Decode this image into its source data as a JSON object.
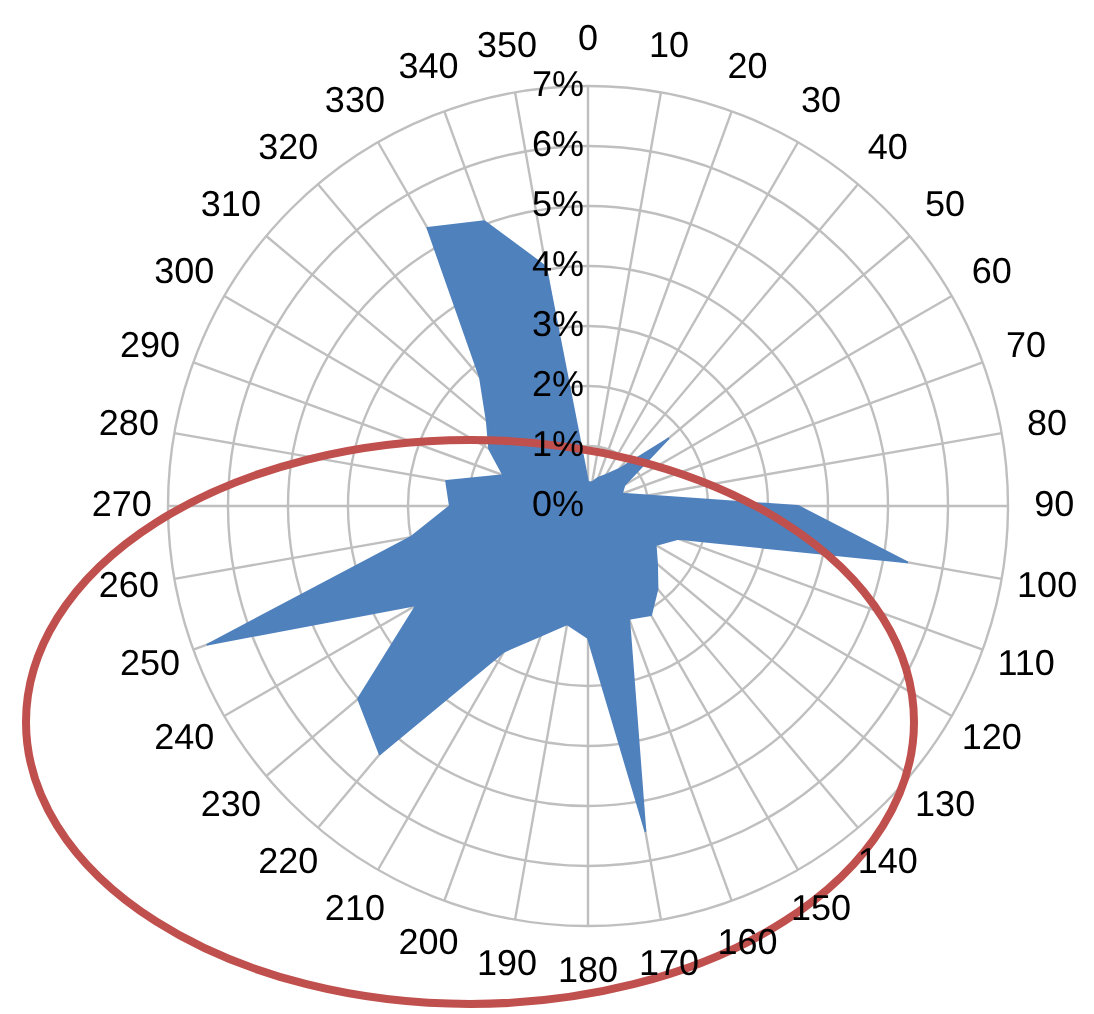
{
  "chart_data": {
    "type": "radar",
    "categories": [
      "0",
      "10",
      "20",
      "30",
      "40",
      "50",
      "60",
      "70",
      "80",
      "90",
      "100",
      "110",
      "120",
      "130",
      "140",
      "150",
      "160",
      "170",
      "180",
      "190",
      "200",
      "210",
      "220",
      "230",
      "240",
      "250",
      "260",
      "270",
      "280",
      "290",
      "300",
      "310",
      "320",
      "330",
      "340",
      "350"
    ],
    "series": [
      {
        "color": "#4f81bd",
        "values": [
          0.4,
          0.4,
          0.5,
          0.6,
          0.8,
          1.75,
          0.7,
          0.6,
          1.0,
          3.5,
          5.4,
          1.6,
          1.3,
          1.5,
          1.8,
          2.1,
          2.0,
          5.5,
          2.2,
          2.0,
          2.3,
          2.8,
          5.4,
          5.0,
          3.3,
          6.75,
          3.0,
          2.3,
          2.4,
          1.5,
          1.9,
          2.2,
          2.8,
          5.35,
          5.05,
          4.05
        ]
      }
    ],
    "ylim": [
      0,
      7
    ],
    "yticks": [
      {
        "value": 0,
        "label": "0%"
      },
      {
        "value": 1,
        "label": "1%"
      },
      {
        "value": 2,
        "label": "2%"
      },
      {
        "value": 3,
        "label": "3%"
      },
      {
        "value": 4,
        "label": "4%"
      },
      {
        "value": 5,
        "label": "5%"
      },
      {
        "value": 6,
        "label": "6%"
      },
      {
        "value": 7,
        "label": "7%"
      }
    ],
    "grid": true
  }
}
